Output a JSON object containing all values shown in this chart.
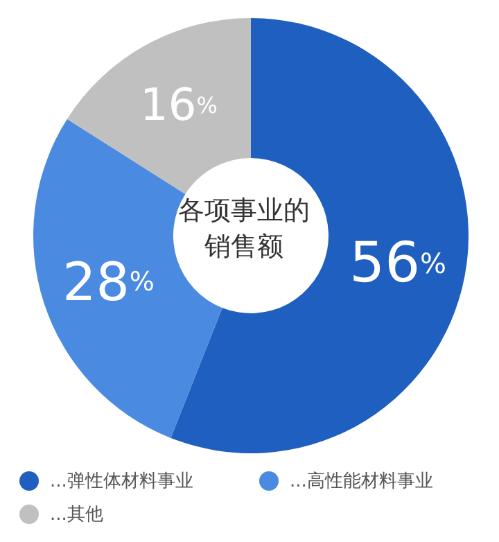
{
  "chart_data": {
    "type": "donut",
    "title": "各项事业的销售额",
    "categories": [
      "...弹性体材料事业",
      "...高性能材料事业",
      "...其他"
    ],
    "values": [
      56,
      28,
      16
    ],
    "colors": [
      "#1f5fbf",
      "#4a8ae0",
      "#c0c0c0"
    ],
    "value_labels": [
      "56%",
      "28%",
      "16%"
    ],
    "legend": "bottom"
  }
}
